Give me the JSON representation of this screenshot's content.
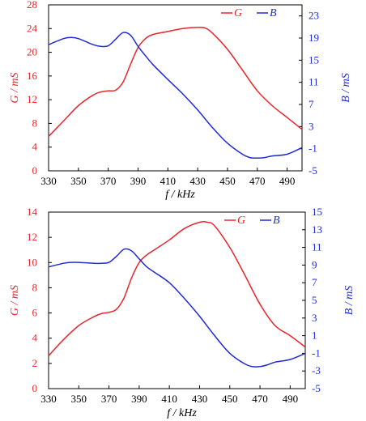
{
  "colors": {
    "g": "#e8262b",
    "b": "#1f2bd6",
    "axis": "#000000"
  },
  "chart_data": [
    {
      "type": "line",
      "xlabel": "f / kHz",
      "ylabel_left": "G / mS",
      "ylabel_right": "B / mS",
      "xlim": [
        330,
        500
      ],
      "ylim_left": [
        0,
        28
      ],
      "ylim_right": [
        -5,
        25
      ],
      "xticks": [
        330,
        350,
        370,
        390,
        410,
        430,
        450,
        470,
        490
      ],
      "yticks_left": [
        0,
        4,
        8,
        12,
        16,
        20,
        24,
        28
      ],
      "yticks_right": [
        -5,
        -1,
        3,
        7,
        11,
        15,
        19,
        23
      ],
      "grid": false,
      "legend_position": "top-right",
      "series": [
        {
          "name": "G",
          "axis": "left",
          "color": "#e8262b",
          "x": [
            330,
            340,
            350,
            360,
            365,
            370,
            375,
            380,
            385,
            390,
            395,
            400,
            410,
            420,
            430,
            435,
            440,
            450,
            460,
            470,
            480,
            490,
            500
          ],
          "y": [
            5.8,
            8.4,
            11.0,
            12.8,
            13.3,
            13.5,
            13.6,
            15.0,
            18.0,
            20.8,
            22.3,
            23.0,
            23.5,
            24.0,
            24.2,
            24.1,
            23.2,
            20.5,
            17.0,
            13.5,
            11.0,
            9.0,
            7.0
          ]
        },
        {
          "name": "B",
          "axis": "right",
          "color": "#1f2bd6",
          "x": [
            330,
            340,
            345,
            350,
            360,
            365,
            370,
            375,
            380,
            385,
            390,
            395,
            400,
            410,
            420,
            430,
            440,
            450,
            460,
            465,
            470,
            475,
            480,
            490,
            500
          ],
          "y": [
            17.8,
            18.9,
            19.1,
            18.9,
            17.8,
            17.5,
            17.6,
            18.8,
            20.0,
            19.5,
            17.5,
            15.8,
            14.2,
            11.5,
            8.9,
            6.0,
            2.8,
            0.0,
            -2.0,
            -2.6,
            -2.7,
            -2.6,
            -2.3,
            -2.0,
            -0.8
          ]
        }
      ]
    },
    {
      "type": "line",
      "xlabel": "f / kHz",
      "ylabel_left": "G / mS",
      "ylabel_right": "B / mS",
      "xlim": [
        330,
        500
      ],
      "ylim_left": [
        0,
        14
      ],
      "ylim_right": [
        -5,
        15
      ],
      "xticks": [
        330,
        350,
        370,
        390,
        410,
        430,
        450,
        470,
        490
      ],
      "yticks_left": [
        0,
        2,
        4,
        6,
        8,
        10,
        12,
        14
      ],
      "yticks_right": [
        -5,
        -3,
        -1,
        1,
        3,
        5,
        7,
        9,
        11,
        13,
        15
      ],
      "grid": false,
      "legend_position": "top-right",
      "series": [
        {
          "name": "G",
          "axis": "left",
          "color": "#e8262b",
          "x": [
            330,
            340,
            350,
            360,
            365,
            370,
            375,
            380,
            385,
            390,
            395,
            400,
            410,
            420,
            430,
            435,
            440,
            450,
            460,
            470,
            480,
            490,
            500
          ],
          "y": [
            2.6,
            3.9,
            5.0,
            5.7,
            5.95,
            6.05,
            6.3,
            7.2,
            8.8,
            10.0,
            10.6,
            11.0,
            11.8,
            12.7,
            13.2,
            13.2,
            12.9,
            11.2,
            9.0,
            6.7,
            5.0,
            4.2,
            3.3
          ]
        },
        {
          "name": "B",
          "axis": "right",
          "color": "#1f2bd6",
          "x": [
            330,
            340,
            345,
            350,
            360,
            365,
            370,
            375,
            380,
            385,
            390,
            395,
            400,
            410,
            420,
            430,
            440,
            450,
            460,
            465,
            470,
            475,
            480,
            490,
            500
          ],
          "y": [
            8.8,
            9.2,
            9.3,
            9.3,
            9.2,
            9.2,
            9.3,
            10.0,
            10.8,
            10.6,
            9.7,
            8.8,
            8.2,
            7.0,
            5.2,
            3.2,
            1.0,
            -1.0,
            -2.2,
            -2.5,
            -2.5,
            -2.3,
            -2.0,
            -1.7,
            -1.0
          ]
        }
      ]
    }
  ]
}
